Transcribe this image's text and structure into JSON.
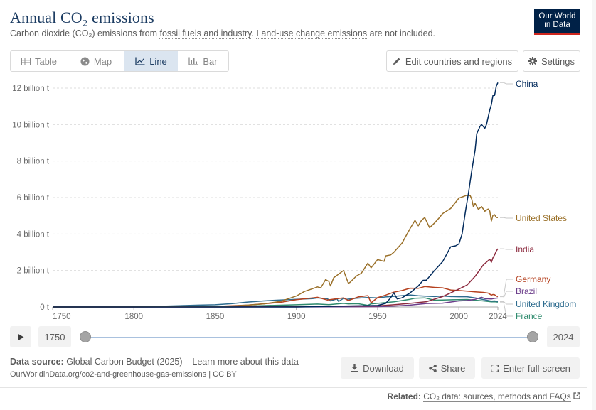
{
  "header": {
    "title": "Annual CO₂ emissions",
    "subtitle_pre": "Carbon dioxide (CO₂) emissions from ",
    "subtitle_link1": "fossil fuels and industry",
    "subtitle_mid": ". ",
    "subtitle_link2": "Land-use change emissions",
    "subtitle_post": " are not included.",
    "logo_line1": "Our World",
    "logo_line2": "in Data"
  },
  "tabs": [
    {
      "label": "Table",
      "icon": "table-icon"
    },
    {
      "label": "Map",
      "icon": "globe-icon"
    },
    {
      "label": "Line",
      "icon": "line-chart-icon",
      "active": true
    },
    {
      "label": "Bar",
      "icon": "bar-chart-icon"
    }
  ],
  "toolbar": {
    "edit_label": "Edit countries and regions",
    "settings_label": "Settings"
  },
  "timeline": {
    "start_year": "1750",
    "end_year": "2024"
  },
  "footer": {
    "source_label": "Data source:",
    "source_text": " Global Carbon Budget (2025) – ",
    "source_link": "Learn more about this data",
    "url_line": "OurWorldinData.org/co2-and-greenhouse-gas-emissions | CC BY",
    "download_label": "Download",
    "share_label": "Share",
    "fullscreen_label": "Enter full-screen",
    "related_label": "Related:",
    "related_link": "CO₂ data: sources, methods and FAQs"
  },
  "colors": {
    "title": "#1d3d63",
    "grid": "#dddddd",
    "China": "#00295b",
    "United States": "#9a7029",
    "India": "#8c2a3e",
    "Germany": "#b5411f",
    "Brazil": "#6b3d8a",
    "United Kingdom": "#2e6c8f",
    "France": "#2f8b6e"
  },
  "chart_data": {
    "type": "line",
    "xlim": [
      1750,
      2024
    ],
    "ylim": [
      0,
      12.5
    ],
    "x_ticks": [
      1750,
      1800,
      1850,
      1900,
      1950,
      2000,
      2024
    ],
    "x_tick_labels": [
      "1750",
      "1800",
      "1850",
      "1900",
      "1950",
      "2000",
      "2024"
    ],
    "y_ticks": [
      0,
      2,
      4,
      6,
      8,
      10,
      12
    ],
    "y_tick_labels": [
      "0 t",
      "2 billion t",
      "4 billion t",
      "6 billion t",
      "8 billion t",
      "10 billion t",
      "12 billion t"
    ],
    "grid": "horizontal dashed",
    "legend": "right-end labels",
    "series": [
      {
        "name": "China",
        "color": "#00295b",
        "points": [
          [
            1750,
            0
          ],
          [
            1900,
            0
          ],
          [
            1950,
            0.08
          ],
          [
            1955,
            0.2
          ],
          [
            1958,
            0.5
          ],
          [
            1960,
            0.78
          ],
          [
            1962,
            0.44
          ],
          [
            1965,
            0.5
          ],
          [
            1970,
            0.77
          ],
          [
            1975,
            1.15
          ],
          [
            1978,
            1.46
          ],
          [
            1980,
            1.47
          ],
          [
            1985,
            2.0
          ],
          [
            1990,
            2.48
          ],
          [
            1995,
            3.3
          ],
          [
            1998,
            3.35
          ],
          [
            2000,
            3.45
          ],
          [
            2002,
            4.0
          ],
          [
            2004,
            5.2
          ],
          [
            2006,
            6.3
          ],
          [
            2008,
            7.5
          ],
          [
            2010,
            8.6
          ],
          [
            2011,
            9.5
          ],
          [
            2012,
            9.7
          ],
          [
            2013,
            9.9
          ],
          [
            2014,
            10.0
          ],
          [
            2015,
            9.9
          ],
          [
            2016,
            9.8
          ],
          [
            2017,
            10.0
          ],
          [
            2018,
            10.4
          ],
          [
            2019,
            10.8
          ],
          [
            2020,
            11.1
          ],
          [
            2021,
            11.6
          ],
          [
            2022,
            11.6
          ],
          [
            2023,
            12.1
          ],
          [
            2024,
            12.3
          ]
        ]
      },
      {
        "name": "United States",
        "color": "#9a7029",
        "points": [
          [
            1750,
            0
          ],
          [
            1800,
            0.002
          ],
          [
            1830,
            0.01
          ],
          [
            1850,
            0.03
          ],
          [
            1860,
            0.05
          ],
          [
            1870,
            0.1
          ],
          [
            1880,
            0.17
          ],
          [
            1890,
            0.3
          ],
          [
            1900,
            0.6
          ],
          [
            1905,
            0.85
          ],
          [
            1910,
            1.0
          ],
          [
            1913,
            1.1
          ],
          [
            1915,
            1.05
          ],
          [
            1918,
            1.5
          ],
          [
            1920,
            1.4
          ],
          [
            1921,
            1.15
          ],
          [
            1923,
            1.6
          ],
          [
            1926,
            1.8
          ],
          [
            1929,
            2.0
          ],
          [
            1930,
            1.78
          ],
          [
            1932,
            1.3
          ],
          [
            1933,
            1.35
          ],
          [
            1937,
            1.7
          ],
          [
            1940,
            1.85
          ],
          [
            1944,
            2.4
          ],
          [
            1946,
            2.15
          ],
          [
            1950,
            2.6
          ],
          [
            1954,
            2.5
          ],
          [
            1955,
            2.8
          ],
          [
            1958,
            2.85
          ],
          [
            1960,
            3.0
          ],
          [
            1965,
            3.5
          ],
          [
            1970,
            4.3
          ],
          [
            1973,
            4.75
          ],
          [
            1975,
            4.45
          ],
          [
            1977,
            4.75
          ],
          [
            1979,
            4.9
          ],
          [
            1982,
            4.35
          ],
          [
            1985,
            4.6
          ],
          [
            1988,
            4.9
          ],
          [
            1990,
            5.12
          ],
          [
            1995,
            5.4
          ],
          [
            2000,
            5.97
          ],
          [
            2005,
            6.13
          ],
          [
            2007,
            6.1
          ],
          [
            2008,
            5.9
          ],
          [
            2009,
            5.48
          ],
          [
            2010,
            5.68
          ],
          [
            2012,
            5.35
          ],
          [
            2014,
            5.5
          ],
          [
            2016,
            5.25
          ],
          [
            2018,
            5.37
          ],
          [
            2019,
            5.26
          ],
          [
            2020,
            4.71
          ],
          [
            2021,
            5.03
          ],
          [
            2022,
            5.06
          ],
          [
            2023,
            4.91
          ],
          [
            2024,
            4.9
          ]
        ]
      },
      {
        "name": "India",
        "color": "#8c2a3e",
        "points": [
          [
            1750,
            0
          ],
          [
            1860,
            0
          ],
          [
            1900,
            0.03
          ],
          [
            1950,
            0.06
          ],
          [
            1960,
            0.12
          ],
          [
            1970,
            0.2
          ],
          [
            1980,
            0.29
          ],
          [
            1990,
            0.57
          ],
          [
            1995,
            0.77
          ],
          [
            2000,
            0.98
          ],
          [
            2005,
            1.2
          ],
          [
            2010,
            1.68
          ],
          [
            2015,
            2.3
          ],
          [
            2017,
            2.46
          ],
          [
            2019,
            2.62
          ],
          [
            2020,
            2.45
          ],
          [
            2021,
            2.7
          ],
          [
            2022,
            2.85
          ],
          [
            2023,
            3.06
          ],
          [
            2024,
            3.19
          ]
        ]
      },
      {
        "name": "Germany",
        "color": "#b5411f",
        "points": [
          [
            1750,
            0
          ],
          [
            1800,
            0.002
          ],
          [
            1850,
            0.03
          ],
          [
            1870,
            0.1
          ],
          [
            1890,
            0.25
          ],
          [
            1900,
            0.4
          ],
          [
            1910,
            0.5
          ],
          [
            1913,
            0.53
          ],
          [
            1919,
            0.38
          ],
          [
            1925,
            0.45
          ],
          [
            1929,
            0.5
          ],
          [
            1932,
            0.35
          ],
          [
            1938,
            0.55
          ],
          [
            1944,
            0.62
          ],
          [
            1946,
            0.23
          ],
          [
            1950,
            0.51
          ],
          [
            1955,
            0.65
          ],
          [
            1960,
            0.81
          ],
          [
            1965,
            0.9
          ],
          [
            1970,
            1.03
          ],
          [
            1975,
            1.02
          ],
          [
            1979,
            1.12
          ],
          [
            1985,
            1.07
          ],
          [
            1990,
            1.05
          ],
          [
            1995,
            0.93
          ],
          [
            2000,
            0.9
          ],
          [
            2005,
            0.87
          ],
          [
            2010,
            0.83
          ],
          [
            2015,
            0.8
          ],
          [
            2018,
            0.76
          ],
          [
            2020,
            0.65
          ],
          [
            2021,
            0.68
          ],
          [
            2022,
            0.67
          ],
          [
            2023,
            0.6
          ],
          [
            2024,
            0.57
          ]
        ]
      },
      {
        "name": "Brazil",
        "color": "#6b3d8a",
        "points": [
          [
            1750,
            0
          ],
          [
            1900,
            0.002
          ],
          [
            1950,
            0.02
          ],
          [
            1960,
            0.05
          ],
          [
            1970,
            0.1
          ],
          [
            1980,
            0.19
          ],
          [
            1990,
            0.21
          ],
          [
            2000,
            0.33
          ],
          [
            2005,
            0.35
          ],
          [
            2010,
            0.42
          ],
          [
            2014,
            0.53
          ],
          [
            2016,
            0.46
          ],
          [
            2020,
            0.44
          ],
          [
            2022,
            0.47
          ],
          [
            2024,
            0.49
          ]
        ]
      },
      {
        "name": "United Kingdom",
        "color": "#2e6c8f",
        "points": [
          [
            1750,
            0.009
          ],
          [
            1775,
            0.015
          ],
          [
            1800,
            0.033
          ],
          [
            1820,
            0.05
          ],
          [
            1840,
            0.1
          ],
          [
            1850,
            0.12
          ],
          [
            1860,
            0.18
          ],
          [
            1870,
            0.27
          ],
          [
            1880,
            0.33
          ],
          [
            1890,
            0.38
          ],
          [
            1900,
            0.42
          ],
          [
            1910,
            0.46
          ],
          [
            1913,
            0.5
          ],
          [
            1919,
            0.45
          ],
          [
            1921,
            0.33
          ],
          [
            1925,
            0.44
          ],
          [
            1926,
            0.3
          ],
          [
            1929,
            0.47
          ],
          [
            1931,
            0.42
          ],
          [
            1937,
            0.48
          ],
          [
            1940,
            0.5
          ],
          [
            1944,
            0.52
          ],
          [
            1950,
            0.5
          ],
          [
            1955,
            0.55
          ],
          [
            1960,
            0.58
          ],
          [
            1965,
            0.62
          ],
          [
            1970,
            0.66
          ],
          [
            1975,
            0.61
          ],
          [
            1980,
            0.59
          ],
          [
            1985,
            0.57
          ],
          [
            1990,
            0.6
          ],
          [
            1995,
            0.57
          ],
          [
            2000,
            0.56
          ],
          [
            2005,
            0.56
          ],
          [
            2010,
            0.5
          ],
          [
            2015,
            0.41
          ],
          [
            2020,
            0.32
          ],
          [
            2022,
            0.33
          ],
          [
            2024,
            0.3
          ]
        ]
      },
      {
        "name": "France",
        "color": "#2f8b6e",
        "points": [
          [
            1750,
            0
          ],
          [
            1800,
            0.002
          ],
          [
            1850,
            0.02
          ],
          [
            1870,
            0.05
          ],
          [
            1900,
            0.12
          ],
          [
            1913,
            0.16
          ],
          [
            1920,
            0.13
          ],
          [
            1929,
            0.2
          ],
          [
            1932,
            0.17
          ],
          [
            1938,
            0.18
          ],
          [
            1944,
            0.09
          ],
          [
            1946,
            0.17
          ],
          [
            1950,
            0.2
          ],
          [
            1960,
            0.28
          ],
          [
            1970,
            0.42
          ],
          [
            1973,
            0.48
          ],
          [
            1979,
            0.5
          ],
          [
            1985,
            0.37
          ],
          [
            1990,
            0.38
          ],
          [
            2000,
            0.4
          ],
          [
            2005,
            0.41
          ],
          [
            2010,
            0.37
          ],
          [
            2015,
            0.33
          ],
          [
            2020,
            0.28
          ],
          [
            2022,
            0.29
          ],
          [
            2024,
            0.27
          ]
        ]
      }
    ],
    "end_labels": [
      {
        "name": "China",
        "label": "China"
      },
      {
        "name": "United States",
        "label": "United States"
      },
      {
        "name": "India",
        "label": "India"
      },
      {
        "name": "Germany",
        "label": "Germany"
      },
      {
        "name": "Brazil",
        "label": "Brazil"
      },
      {
        "name": "United Kingdom",
        "label": "United Kingdom"
      },
      {
        "name": "France",
        "label": "France"
      }
    ]
  }
}
